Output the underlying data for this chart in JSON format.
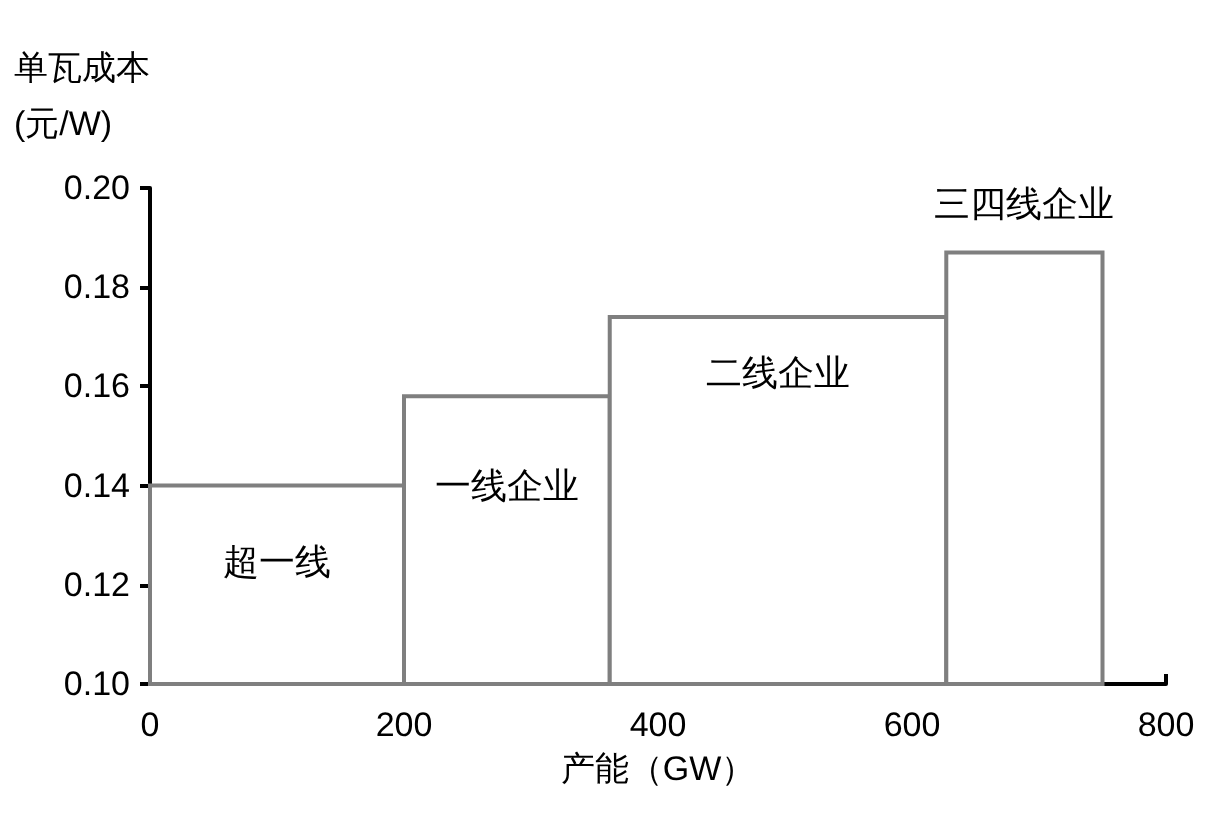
{
  "chart_data": {
    "type": "histogram",
    "ylabel": "单瓦成本\n(元/W)",
    "xlabel": "产能（GW）",
    "bins": [
      0,
      200,
      362,
      627,
      750
    ],
    "values": [
      0.14,
      0.158,
      0.174,
      0.187
    ],
    "color": "#7f7f7f",
    "xlim": [
      0,
      800
    ],
    "xticks": [
      0,
      200,
      400,
      600,
      800
    ],
    "ylim": [
      0.1,
      0.2
    ],
    "yticks": [
      {
        "value": 0.1,
        "label": "0.10"
      },
      0.12,
      0.14,
      0.16,
      0.18,
      {
        "value": 0.2,
        "label": "0.20"
      }
    ],
    "grid": false,
    "annotations": [
      "超一线",
      "一线企业",
      "二线企业",
      "三四线企业"
    ]
  }
}
